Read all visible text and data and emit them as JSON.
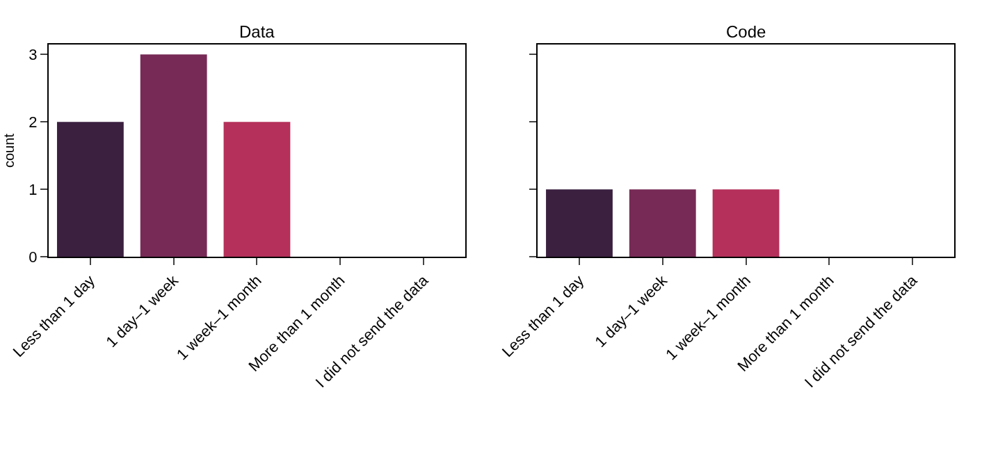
{
  "chart_data": [
    {
      "type": "bar",
      "title": "Data",
      "ylabel": "count",
      "categories": [
        "Less than 1 day",
        "1 day–1 week",
        "1 week–1 month",
        "More than 1 month",
        "I did not send the data"
      ],
      "values": [
        2,
        3,
        2,
        0,
        0
      ],
      "colors": [
        "#3b2040",
        "#772a55",
        "#b5305a",
        "#e13342",
        "#f37651"
      ],
      "ylim": [
        0,
        3.15
      ],
      "yticks": [
        0,
        1,
        2,
        3
      ]
    },
    {
      "type": "bar",
      "title": "Code",
      "categories": [
        "Less than 1 day",
        "1 day–1 week",
        "1 week–1 month",
        "More than 1 month",
        "I did not send the data"
      ],
      "values": [
        1,
        1,
        1,
        0,
        0
      ],
      "colors": [
        "#3b2040",
        "#772a55",
        "#b5305a",
        "#e13342",
        "#f37651"
      ],
      "ylim": [
        0,
        3.15
      ],
      "yticks": [
        0,
        1,
        2,
        3
      ],
      "tick_labels": "x"
    }
  ]
}
